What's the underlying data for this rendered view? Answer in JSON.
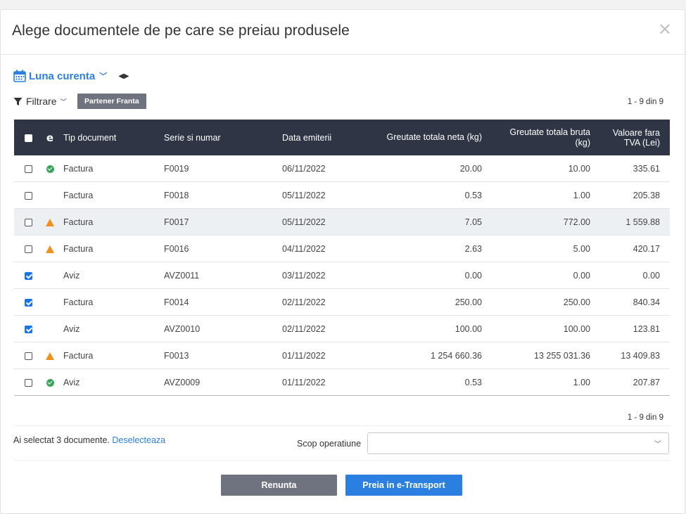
{
  "modal": {
    "title": "Alege documentele de pe care se preiau produsele",
    "close_icon": "close-icon"
  },
  "period": {
    "label": "Luna curenta",
    "calendar_icon": "calendar-icon",
    "nav_arrows": "◀▶"
  },
  "filter": {
    "label": "Filtrare",
    "tag": "Partener Franta"
  },
  "pagination": {
    "top": "1 - 9 din 9",
    "bottom": "1 - 9 din 9"
  },
  "table": {
    "columns": {
      "e_icon": "e",
      "tip": "Tip document",
      "serie": "Serie si numar",
      "data": "Data emiterii",
      "neta": "Greutate totala neta (kg)",
      "bruta": "Greutate totala bruta (kg)",
      "valoare": "Valoare fara TVA (Lei)"
    },
    "rows": [
      {
        "checked": false,
        "status": "ok",
        "tip": "Factura",
        "serie": "F0019",
        "data": "06/11/2022",
        "neta": "20.00",
        "bruta": "10.00",
        "valoare": "335.61"
      },
      {
        "checked": false,
        "status": "none",
        "tip": "Factura",
        "serie": "F0018",
        "data": "05/11/2022",
        "neta": "0.53",
        "bruta": "1.00",
        "valoare": "205.38"
      },
      {
        "checked": false,
        "status": "warn",
        "tip": "Factura",
        "serie": "F0017",
        "data": "05/11/2022",
        "neta": "7.05",
        "bruta": "772.00",
        "valoare": "1 559.88"
      },
      {
        "checked": false,
        "status": "warn",
        "tip": "Factura",
        "serie": "F0016",
        "data": "04/11/2022",
        "neta": "2.63",
        "bruta": "5.00",
        "valoare": "420.17"
      },
      {
        "checked": true,
        "status": "none",
        "tip": "Aviz",
        "serie": "AVZ0011",
        "data": "03/11/2022",
        "neta": "0.00",
        "bruta": "0.00",
        "valoare": "0.00"
      },
      {
        "checked": true,
        "status": "none",
        "tip": "Factura",
        "serie": "F0014",
        "data": "02/11/2022",
        "neta": "250.00",
        "bruta": "250.00",
        "valoare": "840.34"
      },
      {
        "checked": true,
        "status": "none",
        "tip": "Aviz",
        "serie": "AVZ0010",
        "data": "02/11/2022",
        "neta": "100.00",
        "bruta": "100.00",
        "valoare": "123.81"
      },
      {
        "checked": false,
        "status": "warn",
        "tip": "Factura",
        "serie": "F0013",
        "data": "01/11/2022",
        "neta": "1 254 660.36",
        "bruta": "13 255 031.36",
        "valoare": "13 409.83"
      },
      {
        "checked": false,
        "status": "ok",
        "tip": "Aviz",
        "serie": "AVZ0009",
        "data": "01/11/2022",
        "neta": "0.53",
        "bruta": "1.00",
        "valoare": "207.87"
      }
    ]
  },
  "selection": {
    "text": "Ai selectat 3 documente.",
    "deselect": "Deselecteaza"
  },
  "scop": {
    "label": "Scop operatiune",
    "value": ""
  },
  "buttons": {
    "cancel": "Renunta",
    "ok": "Preia in e-Transport"
  },
  "colors": {
    "header_bg": "#2f3544",
    "accent": "#2a7fe0",
    "ok_icon": "#3aa35b",
    "warn_icon": "#f0901e",
    "secondary_button": "#6f7380"
  }
}
